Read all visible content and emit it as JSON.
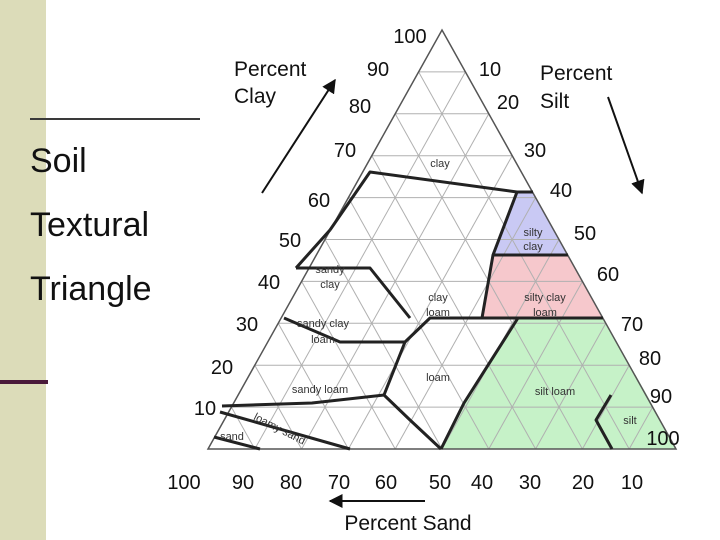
{
  "title": {
    "line1": "Soil",
    "line2": "Textural",
    "line3": "Triangle"
  },
  "axes": {
    "clay": {
      "title_line1": "Percent",
      "title_line2": "Clay",
      "ticks": [
        "90",
        "80",
        "70",
        "60",
        "50",
        "40",
        "30",
        "20",
        "10"
      ]
    },
    "silt": {
      "title_line1": "Percent",
      "title_line2": "Silt",
      "ticks": [
        "10",
        "20",
        "30",
        "40",
        "50",
        "60",
        "70",
        "80",
        "90",
        "100"
      ]
    },
    "sand": {
      "title": "Percent Sand",
      "ticks": [
        "100",
        "90",
        "80",
        "70",
        "60",
        "50",
        "40",
        "30",
        "20",
        "10"
      ]
    },
    "apex": "100"
  },
  "regions": {
    "clay": "clay",
    "silty_clay": [
      "silty",
      "clay"
    ],
    "sandy_clay": [
      "sandy",
      "clay"
    ],
    "clay_loam": [
      "clay",
      "loam"
    ],
    "silty_clay_loam": [
      "silty clay",
      "loam"
    ],
    "sandy_clay_loam": [
      "sandy clay",
      "loam"
    ],
    "loam": "loam",
    "silt_loam": "silt loam",
    "sandy_loam": "sandy loam",
    "loamy_sand": "loamy sand",
    "sand": "sand",
    "silt": "silt"
  },
  "colors": {
    "silty_clay": "#c9c9f4",
    "silty_clay_loam": "#f6c8cc",
    "silt_loam": "#c6f2c8",
    "silt": "#c6f2c8"
  }
}
